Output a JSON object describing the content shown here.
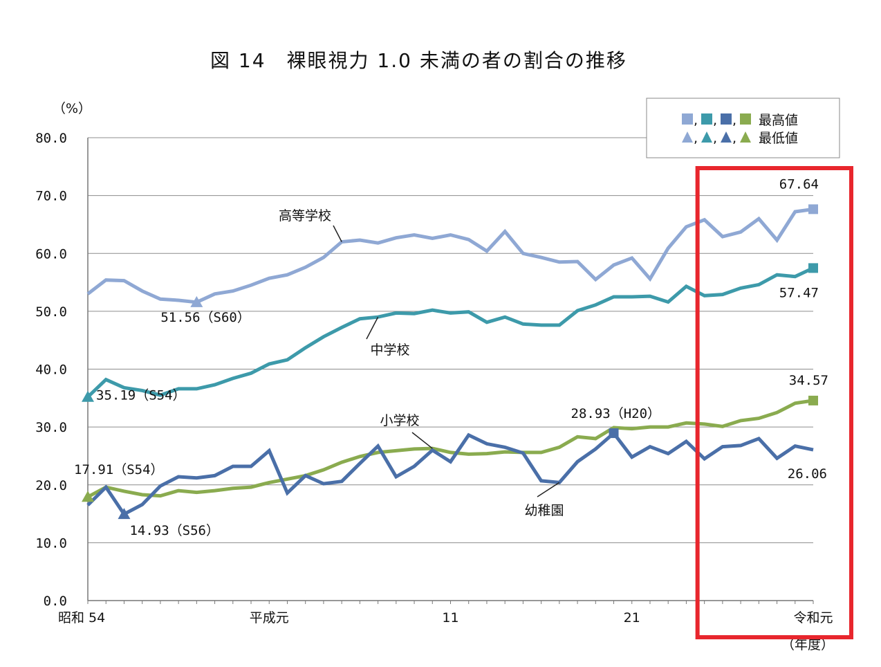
{
  "title": "図 14　裸眼視力 1.0 未満の者の割合の推移",
  "chart_data": {
    "type": "line",
    "ylabel": "（%）",
    "xlabel": "（年度）",
    "ylim": [
      0,
      80
    ],
    "yticks": [
      "0.0",
      "10.0",
      "20.0",
      "30.0",
      "40.0",
      "50.0",
      "60.0",
      "70.0",
      "80.0"
    ],
    "x_tick_labels": [
      {
        "index": 0,
        "label": "昭和 54"
      },
      {
        "index": 10,
        "label": "平成元"
      },
      {
        "index": 20,
        "label": "11"
      },
      {
        "index": 30,
        "label": "21"
      },
      {
        "index": 40,
        "label": "令和元"
      }
    ],
    "x_count": 41,
    "series": [
      {
        "name": "高等学校",
        "color": "#8fa8d4",
        "values": [
          53.0,
          55.4,
          55.3,
          53.5,
          52.1,
          51.9,
          51.56,
          53.0,
          53.5,
          54.5,
          55.7,
          56.3,
          57.6,
          59.3,
          62.0,
          62.3,
          61.8,
          62.7,
          63.2,
          62.6,
          63.2,
          62.4,
          60.4,
          63.8,
          60.0,
          59.3,
          58.5,
          58.6,
          55.5,
          58.0,
          59.2,
          55.6,
          60.9,
          64.6,
          65.8,
          62.9,
          63.7,
          66.0,
          62.3,
          67.2,
          67.64
        ],
        "max_index": 40,
        "min_index": 6
      },
      {
        "name": "中学校",
        "color": "#3d9aaa",
        "values": [
          35.19,
          38.2,
          36.8,
          36.3,
          35.5,
          36.6,
          36.6,
          37.3,
          38.4,
          39.3,
          40.9,
          41.6,
          43.7,
          45.6,
          47.2,
          48.7,
          49.0,
          49.7,
          49.6,
          50.2,
          49.7,
          49.9,
          48.1,
          49.0,
          47.8,
          47.6,
          47.6,
          50.1,
          51.1,
          52.5,
          52.5,
          52.6,
          51.6,
          54.3,
          52.7,
          52.9,
          54.0,
          54.6,
          56.3,
          56.0,
          57.47
        ],
        "max_index": 40,
        "min_index": 0
      },
      {
        "name": "小学校",
        "color": "#8aab4f",
        "values": [
          17.91,
          19.6,
          18.9,
          18.3,
          18.1,
          19.0,
          18.7,
          19.0,
          19.4,
          19.6,
          20.4,
          21.0,
          21.6,
          22.6,
          23.9,
          24.9,
          25.6,
          25.9,
          26.2,
          26.3,
          25.6,
          25.3,
          25.4,
          25.7,
          25.6,
          25.6,
          26.5,
          28.3,
          28.0,
          29.9,
          29.7,
          30.0,
          30.0,
          30.7,
          30.5,
          30.1,
          31.1,
          31.5,
          32.5,
          34.1,
          34.57
        ],
        "max_index": 40,
        "min_index": 0
      },
      {
        "name": "幼稚園",
        "color": "#4a6fa8",
        "values": [
          16.5,
          19.6,
          14.93,
          16.6,
          19.8,
          21.4,
          21.2,
          21.6,
          23.2,
          23.2,
          25.9,
          18.6,
          21.6,
          20.2,
          20.6,
          23.7,
          26.7,
          21.4,
          23.2,
          26.0,
          24.0,
          28.6,
          27.1,
          26.5,
          25.5,
          20.7,
          20.4,
          24.0,
          26.2,
          28.93,
          24.8,
          26.6,
          25.4,
          27.5,
          24.5,
          26.6,
          26.8,
          28.0,
          24.6,
          26.7,
          26.06
        ],
        "max_index": 29,
        "min_index": 2
      }
    ],
    "annotations": [
      {
        "text": "67.64",
        "series": 0,
        "index": 40
      },
      {
        "text": "51.56（S60）",
        "series": 0,
        "index": 6
      },
      {
        "text": "57.47",
        "series": 1,
        "index": 40
      },
      {
        "text": "35.19（S54）",
        "series": 1,
        "index": 0
      },
      {
        "text": "34.57",
        "series": 2,
        "index": 40
      },
      {
        "text": "17.91（S54）",
        "series": 2,
        "index": 0
      },
      {
        "text": "28.93（H20）",
        "series": 3,
        "index": 29
      },
      {
        "text": "14.93（S56）",
        "series": 3,
        "index": 2
      },
      {
        "text": "26.06",
        "series": 3,
        "index": 40
      }
    ],
    "series_labels": [
      "高等学校",
      "中学校",
      "小学校",
      "幼稚園"
    ],
    "legend": {
      "position": "top-right",
      "max_label": "最高値",
      "min_label": "最低値"
    },
    "highlight": {
      "color": "#e8262d",
      "from_index": 34,
      "to_index": 40
    }
  }
}
